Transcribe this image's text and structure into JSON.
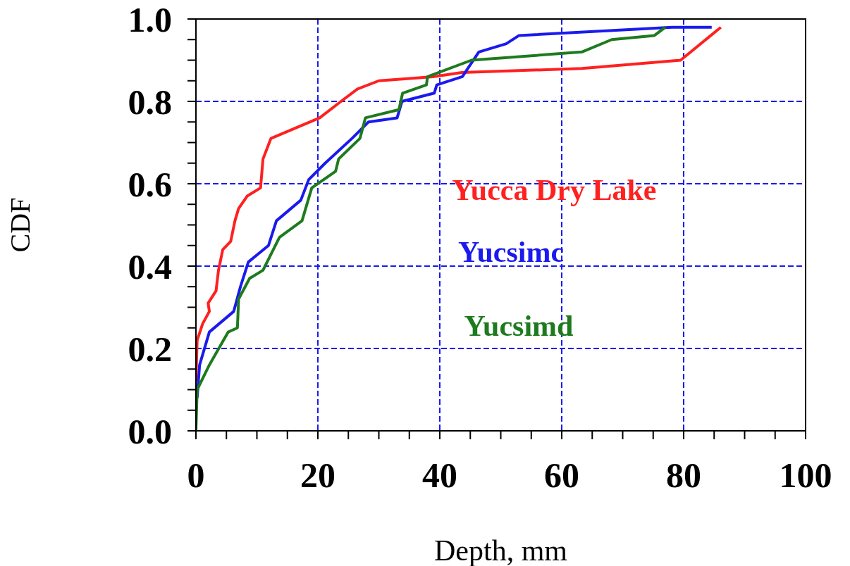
{
  "chart_data": {
    "type": "line",
    "xlabel": "Depth, mm",
    "ylabel": "CDF",
    "xlim": [
      0,
      100
    ],
    "ylim": [
      0,
      1
    ],
    "xticks": [
      0,
      {
        "value": 5,
        "label": null
      },
      {
        "value": 10,
        "label": null
      },
      {
        "value": 15,
        "label": null
      },
      20,
      {
        "value": 25,
        "label": null
      },
      {
        "value": 30,
        "label": null
      },
      {
        "value": 35,
        "label": null
      },
      40,
      {
        "value": 45,
        "label": null
      },
      {
        "value": 50,
        "label": null
      },
      {
        "value": 55,
        "label": null
      },
      60,
      {
        "value": 65,
        "label": null
      },
      {
        "value": 70,
        "label": null
      },
      {
        "value": 75,
        "label": null
      },
      80,
      {
        "value": 85,
        "label": null
      },
      {
        "value": 90,
        "label": null
      },
      {
        "value": 95,
        "label": null
      },
      100
    ],
    "yticks": [
      {
        "value": 0,
        "label": "0.0"
      },
      {
        "value": 0.05,
        "label": null
      },
      {
        "value": 0.1,
        "label": null
      },
      {
        "value": 0.15,
        "label": null
      },
      {
        "value": 0.2,
        "label": "0.2"
      },
      {
        "value": 0.25,
        "label": null
      },
      {
        "value": 0.3,
        "label": null
      },
      {
        "value": 0.35,
        "label": null
      },
      {
        "value": 0.4,
        "label": "0.4"
      },
      {
        "value": 0.45,
        "label": null
      },
      {
        "value": 0.5,
        "label": null
      },
      {
        "value": 0.55,
        "label": null
      },
      {
        "value": 0.6,
        "label": "0.6"
      },
      {
        "value": 0.65,
        "label": null
      },
      {
        "value": 0.7,
        "label": null
      },
      {
        "value": 0.75,
        "label": null
      },
      {
        "value": 0.8,
        "label": "0.8"
      },
      {
        "value": 0.85,
        "label": null
      },
      {
        "value": 0.9,
        "label": null
      },
      {
        "value": 0.95,
        "label": null
      },
      {
        "value": 1,
        "label": "1.0"
      }
    ],
    "grid": true,
    "line_style": "solid",
    "series": [
      {
        "name": "Yucca Dry Lake",
        "color": "#ff2020",
        "x": [
          0,
          0.2,
          1.1,
          2.2,
          2.0,
          3.3,
          3.7,
          4.4,
          5.7,
          6.4,
          7.0,
          8.4,
          10.6,
          11.0,
          12.3,
          20.3,
          23.8,
          26.5,
          30.0,
          38.9,
          43.6,
          63.3,
          79.5,
          86.1
        ],
        "values": [
          0.12,
          0.22,
          0.26,
          0.29,
          0.31,
          0.34,
          0.39,
          0.44,
          0.46,
          0.51,
          0.54,
          0.57,
          0.59,
          0.66,
          0.71,
          0.76,
          0.8,
          0.83,
          0.85,
          0.86,
          0.87,
          0.88,
          0.9,
          0.98
        ]
      },
      {
        "name": "Yucsimc",
        "color": "#1a1aee",
        "x": [
          0.2,
          0.6,
          2.2,
          6.2,
          7.3,
          8.6,
          11.9,
          13.2,
          17.2,
          18.5,
          21.2,
          25.6,
          28.3,
          33.0,
          33.8,
          39.1,
          39.5,
          43.7,
          46.4,
          50.9,
          53.0,
          78.1,
          84.6
        ],
        "values": [
          0.08,
          0.16,
          0.24,
          0.29,
          0.35,
          0.41,
          0.45,
          0.51,
          0.56,
          0.61,
          0.65,
          0.71,
          0.75,
          0.76,
          0.8,
          0.82,
          0.84,
          0.86,
          0.92,
          0.94,
          0.96,
          0.98,
          0.98
        ]
      },
      {
        "name": "Yucsimd",
        "color": "#1e7a1e",
        "x": [
          0,
          0.2,
          2.2,
          5.3,
          6.8,
          7.0,
          8.8,
          11.0,
          13.7,
          17.4,
          19.0,
          22.9,
          23.4,
          26.9,
          27.8,
          33.3,
          33.9,
          37.8,
          38.0,
          45.2,
          63.3,
          68.2,
          75.2,
          77.0
        ],
        "values": [
          0,
          0.1,
          0.16,
          0.24,
          0.25,
          0.32,
          0.37,
          0.39,
          0.47,
          0.51,
          0.59,
          0.63,
          0.66,
          0.71,
          0.76,
          0.78,
          0.82,
          0.84,
          0.86,
          0.9,
          0.92,
          0.95,
          0.96,
          0.98
        ]
      }
    ]
  }
}
